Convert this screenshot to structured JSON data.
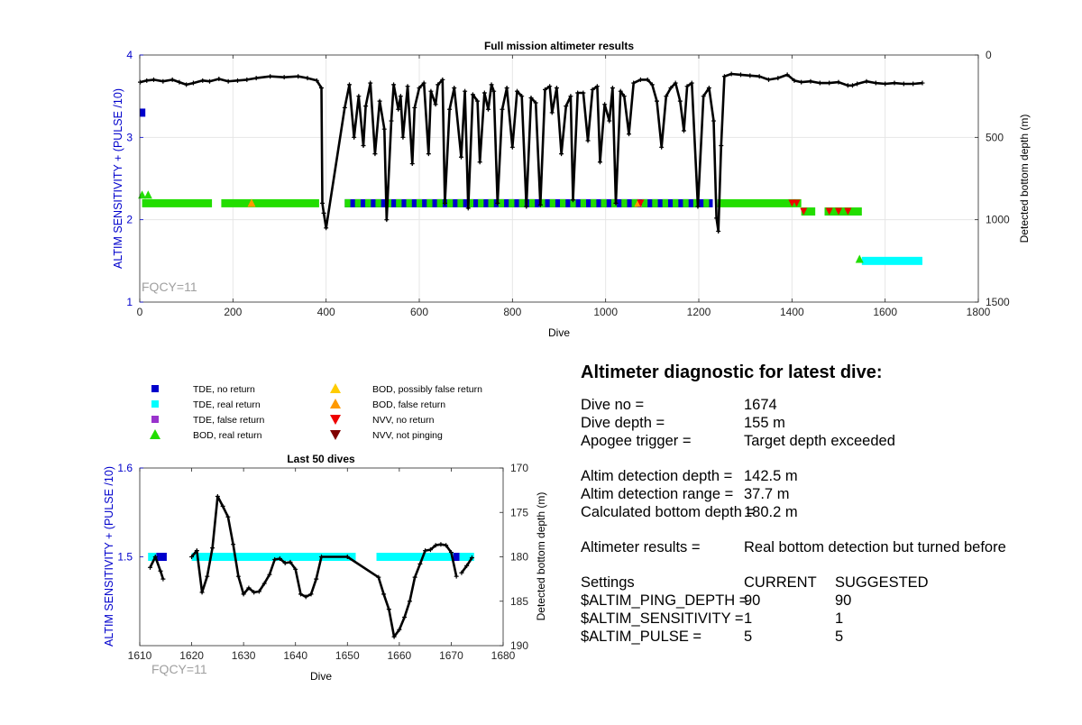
{
  "colors": {
    "tde_no_return": "#0000CC",
    "tde_real_return": "#00FFFF",
    "tde_false_return": "#9933CC",
    "bod_real_return": "#22DD00",
    "bod_possibly_false": "#FFCC00",
    "bod_false": "#FF9900",
    "nvv_no_return": "#EE0000",
    "nvv_not_pinging": "#800000",
    "left_axis": "#0000CC",
    "depth_line": "#000000"
  },
  "legend": [
    {
      "label": "TDE, no return",
      "marker": "square",
      "color_key": "tde_no_return"
    },
    {
      "label": "TDE, real return",
      "marker": "square",
      "color_key": "tde_real_return"
    },
    {
      "label": "TDE, false return",
      "marker": "square",
      "color_key": "tde_false_return"
    },
    {
      "label": "BOD, real return",
      "marker": "triangle-up",
      "color_key": "bod_real_return"
    },
    {
      "label": "BOD, possibly false return",
      "marker": "triangle-up",
      "color_key": "bod_possibly_false"
    },
    {
      "label": "BOD, false return",
      "marker": "triangle-up",
      "color_key": "bod_false"
    },
    {
      "label": "NVV, no return",
      "marker": "triangle-down",
      "color_key": "nvv_no_return"
    },
    {
      "label": "NVV, not pinging",
      "marker": "triangle-down",
      "color_key": "nvv_not_pinging"
    }
  ],
  "chart_data": [
    {
      "type": "line",
      "title": "Full mission altimeter results",
      "xlabel": "Dive",
      "ylabel": "ALTIM SENSITIVITY + (PULSE /10)",
      "y2label": "Detected bottom depth (m)",
      "annotation": "FQCY=11",
      "xlim": [
        0,
        1800
      ],
      "ylim": [
        1,
        4
      ],
      "y2lim": [
        0,
        1500
      ],
      "y2_reversed": true,
      "grid": true,
      "xticks": [
        "0",
        "200",
        "400",
        "600",
        "800",
        "1000",
        "1200",
        "1400",
        "1600",
        "1800"
      ],
      "yticks": [
        "1",
        "2",
        "3",
        "4"
      ],
      "y2ticks": [
        "0",
        "500",
        "1000",
        "1500"
      ],
      "settings_segments": [
        {
          "x_start": 0,
          "x_end": 12,
          "y": 3.3,
          "color_key": "tde_no_return"
        },
        {
          "x_start": 5,
          "x_end": 155,
          "y": 2.2,
          "color_key": "bod_real_return"
        },
        {
          "x_start": 175,
          "x_end": 385,
          "y": 2.2,
          "color_key": "bod_real_return"
        },
        {
          "x_start": 440,
          "x_end": 1230,
          "y": 2.2,
          "color_key": "tde_no_return"
        },
        {
          "x_start": 440,
          "x_end": 1230,
          "y": 2.2,
          "color_key": "bod_real_return",
          "pattern": "alternating"
        },
        {
          "x_start": 1240,
          "x_end": 1420,
          "y": 2.2,
          "color_key": "bod_real_return"
        },
        {
          "x_start": 1420,
          "x_end": 1450,
          "y": 2.1,
          "color_key": "bod_real_return"
        },
        {
          "x_start": 1470,
          "x_end": 1550,
          "y": 2.1,
          "color_key": "bod_real_return"
        },
        {
          "x_start": 1550,
          "x_end": 1680,
          "y": 1.5,
          "color_key": "tde_real_return"
        }
      ],
      "markers": [
        {
          "x": 5,
          "y": 2.3,
          "color_key": "bod_real_return",
          "marker": "triangle-up"
        },
        {
          "x": 18,
          "y": 2.3,
          "color_key": "bod_real_return",
          "marker": "triangle-up"
        },
        {
          "x": 240,
          "y": 2.2,
          "color_key": "bod_false",
          "marker": "triangle-up"
        },
        {
          "x": 1070,
          "y": 2.2,
          "color_key": "bod_false",
          "marker": "triangle-up"
        },
        {
          "x": 1075,
          "y": 2.2,
          "color_key": "nvv_no_return",
          "marker": "triangle-down"
        },
        {
          "x": 1400,
          "y": 2.2,
          "color_key": "nvv_no_return",
          "marker": "triangle-down"
        },
        {
          "x": 1410,
          "y": 2.2,
          "color_key": "nvv_no_return",
          "marker": "triangle-down"
        },
        {
          "x": 1425,
          "y": 2.1,
          "color_key": "nvv_no_return",
          "marker": "triangle-down"
        },
        {
          "x": 1480,
          "y": 2.1,
          "color_key": "nvv_no_return",
          "marker": "triangle-down"
        },
        {
          "x": 1500,
          "y": 2.1,
          "color_key": "nvv_no_return",
          "marker": "triangle-down"
        },
        {
          "x": 1520,
          "y": 2.1,
          "color_key": "nvv_no_return",
          "marker": "triangle-down"
        },
        {
          "x": 1545,
          "y": 1.52,
          "color_key": "bod_real_return",
          "marker": "triangle-up"
        }
      ],
      "depth_series": [
        [
          1,
          165
        ],
        [
          15,
          155
        ],
        [
          30,
          150
        ],
        [
          50,
          160
        ],
        [
          70,
          150
        ],
        [
          85,
          165
        ],
        [
          100,
          180
        ],
        [
          115,
          170
        ],
        [
          135,
          155
        ],
        [
          150,
          160
        ],
        [
          170,
          145
        ],
        [
          190,
          160
        ],
        [
          210,
          155
        ],
        [
          230,
          150
        ],
        [
          250,
          140
        ],
        [
          280,
          130
        ],
        [
          310,
          135
        ],
        [
          340,
          130
        ],
        [
          360,
          140
        ],
        [
          380,
          155
        ],
        [
          390,
          200
        ],
        [
          392,
          900
        ],
        [
          395,
          960
        ],
        [
          400,
          1050
        ],
        [
          440,
          320
        ],
        [
          450,
          180
        ],
        [
          460,
          500
        ],
        [
          470,
          250
        ],
        [
          480,
          550
        ],
        [
          485,
          310
        ],
        [
          495,
          170
        ],
        [
          505,
          600
        ],
        [
          515,
          280
        ],
        [
          525,
          450
        ],
        [
          530,
          1000
        ],
        [
          540,
          400
        ],
        [
          545,
          180
        ],
        [
          555,
          330
        ],
        [
          560,
          250
        ],
        [
          565,
          500
        ],
        [
          575,
          190
        ],
        [
          585,
          660
        ],
        [
          590,
          320
        ],
        [
          600,
          200
        ],
        [
          610,
          170
        ],
        [
          620,
          600
        ],
        [
          625,
          220
        ],
        [
          635,
          300
        ],
        [
          640,
          180
        ],
        [
          650,
          150
        ],
        [
          655,
          900
        ],
        [
          665,
          330
        ],
        [
          675,
          200
        ],
        [
          690,
          620
        ],
        [
          698,
          220
        ],
        [
          705,
          930
        ],
        [
          715,
          240
        ],
        [
          725,
          280
        ],
        [
          730,
          650
        ],
        [
          740,
          230
        ],
        [
          748,
          330
        ],
        [
          755,
          180
        ],
        [
          760,
          220
        ],
        [
          768,
          900
        ],
        [
          778,
          330
        ],
        [
          788,
          200
        ],
        [
          800,
          560
        ],
        [
          810,
          220
        ],
        [
          820,
          250
        ],
        [
          830,
          920
        ],
        [
          840,
          260
        ],
        [
          850,
          290
        ],
        [
          860,
          910
        ],
        [
          870,
          210
        ],
        [
          880,
          190
        ],
        [
          885,
          350
        ],
        [
          895,
          200
        ],
        [
          905,
          600
        ],
        [
          915,
          310
        ],
        [
          925,
          250
        ],
        [
          930,
          880
        ],
        [
          940,
          230
        ],
        [
          952,
          230
        ],
        [
          962,
          520
        ],
        [
          972,
          210
        ],
        [
          982,
          190
        ],
        [
          988,
          650
        ],
        [
          998,
          300
        ],
        [
          1008,
          400
        ],
        [
          1015,
          200
        ],
        [
          1022,
          900
        ],
        [
          1032,
          220
        ],
        [
          1040,
          250
        ],
        [
          1050,
          480
        ],
        [
          1060,
          170
        ],
        [
          1075,
          150
        ],
        [
          1090,
          150
        ],
        [
          1100,
          180
        ],
        [
          1110,
          280
        ],
        [
          1120,
          560
        ],
        [
          1130,
          250
        ],
        [
          1140,
          200
        ],
        [
          1150,
          170
        ],
        [
          1160,
          280
        ],
        [
          1168,
          460
        ],
        [
          1175,
          190
        ],
        [
          1185,
          170
        ],
        [
          1198,
          920
        ],
        [
          1210,
          250
        ],
        [
          1222,
          200
        ],
        [
          1232,
          400
        ],
        [
          1238,
          990
        ],
        [
          1242,
          1070
        ],
        [
          1248,
          550
        ],
        [
          1255,
          130
        ],
        [
          1270,
          115
        ],
        [
          1290,
          120
        ],
        [
          1310,
          125
        ],
        [
          1330,
          130
        ],
        [
          1350,
          150
        ],
        [
          1370,
          140
        ],
        [
          1390,
          120
        ],
        [
          1405,
          155
        ],
        [
          1420,
          165
        ],
        [
          1440,
          160
        ],
        [
          1460,
          170
        ],
        [
          1480,
          170
        ],
        [
          1500,
          165
        ],
        [
          1520,
          185
        ],
        [
          1530,
          185
        ],
        [
          1540,
          175
        ],
        [
          1560,
          160
        ],
        [
          1580,
          170
        ],
        [
          1600,
          175
        ],
        [
          1620,
          170
        ],
        [
          1640,
          175
        ],
        [
          1660,
          175
        ],
        [
          1680,
          170
        ]
      ]
    },
    {
      "type": "line",
      "title": "Last 50 dives",
      "xlabel": "Dive",
      "ylabel": "ALTIM SENSITIVITY + (PULSE /10)",
      "y2label": "Detected bottom depth (m)",
      "annotation": "FQCY=11",
      "xlim": [
        1610,
        1680
      ],
      "ylim": [
        1.4,
        1.6
      ],
      "y2lim": [
        170,
        190
      ],
      "y2_reversed": true,
      "grid": false,
      "xticks": [
        "1610",
        "1620",
        "1630",
        "1640",
        "1650",
        "1660",
        "1670",
        "1680"
      ],
      "yticks": [
        "1.5",
        "1.6"
      ],
      "ytick_values": [
        1.5,
        1.6
      ],
      "y2ticks": [
        "170",
        "175",
        "180",
        "185",
        "190"
      ],
      "settings_segments": [
        {
          "x_start": 1611.6,
          "x_end": 1613.2,
          "y": 1.5,
          "color_key": "tde_real_return"
        },
        {
          "x_start": 1613.2,
          "x_end": 1615.2,
          "y": 1.5,
          "color_key": "tde_no_return"
        },
        {
          "x_start": 1620.0,
          "x_end": 1651.6,
          "y": 1.5,
          "color_key": "tde_real_return"
        },
        {
          "x_start": 1655.6,
          "x_end": 1670.4,
          "y": 1.5,
          "color_key": "tde_real_return"
        },
        {
          "x_start": 1670.4,
          "x_end": 1671.6,
          "y": 1.5,
          "color_key": "tde_no_return"
        },
        {
          "x_start": 1671.6,
          "x_end": 1674.4,
          "y": 1.5,
          "color_key": "tde_real_return"
        }
      ],
      "depth_segments": [
        [
          [
            1612,
            181.2
          ],
          [
            1613,
            180.0
          ],
          [
            1614,
            181.6
          ],
          [
            1614.5,
            182.5
          ]
        ],
        [
          [
            1620,
            180.0
          ],
          [
            1621,
            179.3
          ],
          [
            1622,
            184.0
          ],
          [
            1623,
            182.2
          ],
          [
            1624,
            179.0
          ],
          [
            1625,
            173.2
          ],
          [
            1626,
            174.3
          ],
          [
            1627,
            175.5
          ],
          [
            1628,
            178.6
          ],
          [
            1629,
            182.2
          ],
          [
            1630,
            184.2
          ],
          [
            1631,
            183.5
          ],
          [
            1632,
            184.0
          ],
          [
            1633,
            183.9
          ],
          [
            1634,
            183.0
          ],
          [
            1635,
            182.0
          ],
          [
            1636,
            180.3
          ],
          [
            1637,
            180.2
          ],
          [
            1638,
            180.7
          ],
          [
            1639,
            180.6
          ],
          [
            1640,
            181.4
          ],
          [
            1641,
            184.2
          ],
          [
            1642,
            184.5
          ],
          [
            1643,
            184.2
          ],
          [
            1644,
            182.5
          ],
          [
            1645,
            180.0
          ],
          [
            1650,
            180.0
          ],
          [
            1656,
            182.3
          ],
          [
            1657,
            184.2
          ],
          [
            1658,
            185.9
          ],
          [
            1659,
            189.0
          ],
          [
            1660,
            188.2
          ],
          [
            1661,
            186.8
          ],
          [
            1662,
            185.0
          ],
          [
            1663,
            182.3
          ],
          [
            1664,
            180.8
          ],
          [
            1665,
            179.3
          ],
          [
            1666,
            179.2
          ],
          [
            1667,
            178.7
          ],
          [
            1668,
            178.6
          ],
          [
            1669,
            178.7
          ],
          [
            1670,
            179.5
          ],
          [
            1671,
            182.2
          ]
        ],
        [
          [
            1672,
            181.8
          ],
          [
            1673,
            181.0
          ],
          [
            1674,
            180.1
          ]
        ]
      ]
    }
  ],
  "diagnostic": {
    "title": "Altimeter diagnostic for latest dive:",
    "dive_no": {
      "label": "Dive no =",
      "value": "1674"
    },
    "dive_depth": {
      "label": "Dive depth =",
      "value": "155 m"
    },
    "apogee_trigger": {
      "label": "Apogee trigger =",
      "value": "Target depth exceeded"
    },
    "detection_depth": {
      "label": "Altim detection depth =",
      "value": "142.5 m"
    },
    "detection_range": {
      "label": "Altim detection range =",
      "value": "37.7 m"
    },
    "bottom_depth": {
      "label": "Calculated bottom depth =",
      "value": "180.2 m"
    },
    "results": {
      "label": "Altimeter results =",
      "value": "Real bottom detection but turned before"
    },
    "settings_header": {
      "label": "Settings",
      "current": "CURRENT",
      "suggested": "SUGGESTED"
    },
    "settings": [
      {
        "label": "$ALTIM_PING_DEPTH =",
        "current": "90",
        "suggested": "90"
      },
      {
        "label": "$ALTIM_SENSITIVITY =",
        "current": "1",
        "suggested": "1"
      },
      {
        "label": "$ALTIM_PULSE =",
        "current": "5",
        "suggested": "5"
      }
    ]
  }
}
